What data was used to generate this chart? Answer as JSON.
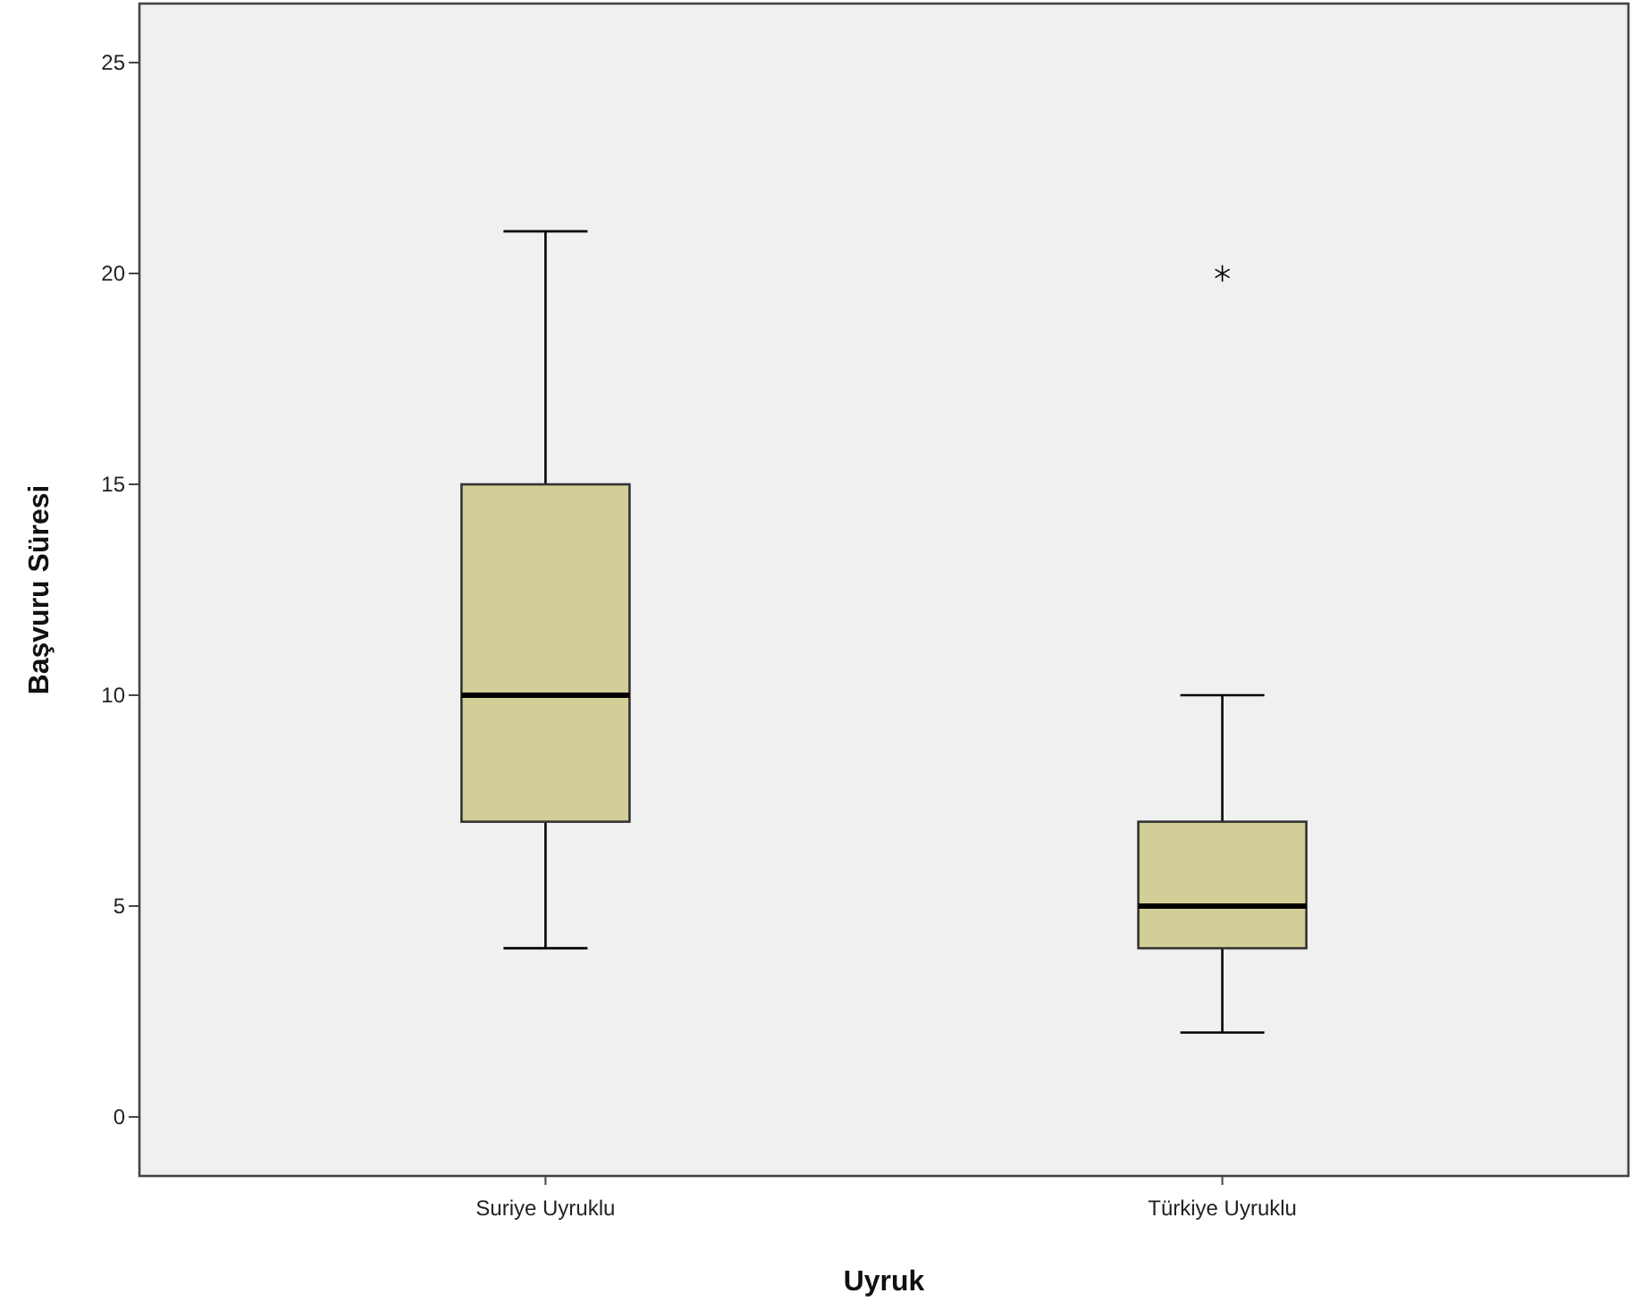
{
  "chart_data": {
    "type": "box",
    "xlabel": "Uyruk",
    "ylabel": "Başvuru Süresi",
    "categories": [
      "Suriye Uyruklu",
      "Türkiye Uyruklu"
    ],
    "boxes": [
      {
        "low": 4,
        "q1": 7,
        "median": 10,
        "q3": 15,
        "high": 21
      },
      {
        "low": 2,
        "q1": 4,
        "median": 5,
        "q3": 7,
        "high": 10,
        "outliers": [
          20
        ]
      }
    ],
    "color": "#d3ce97",
    "ylim": [
      -1.4,
      26.4
    ],
    "yticks": [
      0,
      5,
      10,
      15,
      20,
      25
    ],
    "marker": "star"
  }
}
